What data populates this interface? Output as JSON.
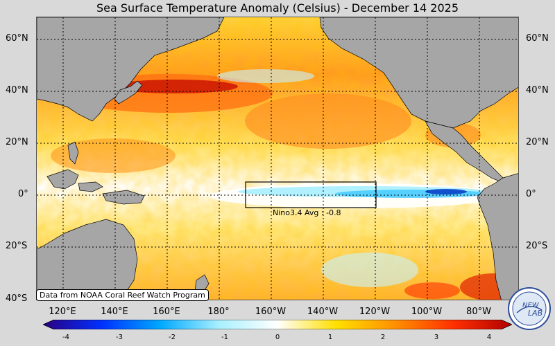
{
  "title": "Sea Surface Temperature Anomaly (Celsius) - December 14 2025",
  "latitude_labels": [
    "60°N",
    "40°N",
    "20°N",
    "0°",
    "20°S",
    "40°S"
  ],
  "longitude_labels": [
    "120°E",
    "140°E",
    "160°E",
    "180°",
    "160°W",
    "140°W",
    "120°W",
    "100°W",
    "80°W"
  ],
  "nino_box": {
    "label": "Nino3.4 Avg :",
    "value": "-0.8"
  },
  "source_note": "Data from NOAA Coral Reef Watch Program",
  "colorbar": {
    "ticks": [
      "-4",
      "-3",
      "-2",
      "-1",
      "0",
      "1",
      "2",
      "3",
      "4"
    ],
    "colors": [
      "#2a0080",
      "#0030ff",
      "#00a8ff",
      "#a8f0ff",
      "#ffffff",
      "#ffe000",
      "#ff9000",
      "#ff3000",
      "#b00000"
    ]
  },
  "logo": {
    "text": "NEW",
    "text2": "LAB"
  },
  "colors": {
    "land": "#a6a6a6",
    "background": "#d9d9d9"
  }
}
